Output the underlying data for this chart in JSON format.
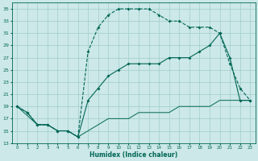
{
  "xlabel": "Humidex (Indice chaleur)",
  "xlim": [
    -0.5,
    23.5
  ],
  "ylim": [
    13,
    36
  ],
  "yticks": [
    13,
    15,
    17,
    19,
    21,
    23,
    25,
    27,
    29,
    31,
    33,
    35
  ],
  "xticks": [
    0,
    1,
    2,
    3,
    4,
    5,
    6,
    7,
    8,
    9,
    10,
    11,
    12,
    13,
    14,
    15,
    16,
    17,
    18,
    19,
    20,
    21,
    22,
    23
  ],
  "background_color": "#cce8e8",
  "grid_color": "#a0cccc",
  "line_color": "#006655",
  "curve_upper_x": [
    0,
    1,
    2,
    3,
    4,
    5,
    6,
    7,
    8,
    9,
    10,
    11,
    12,
    13,
    14,
    15,
    16,
    17,
    18,
    19,
    20,
    21,
    22,
    23
  ],
  "curve_upper_y": [
    19,
    18,
    16,
    16,
    15,
    15,
    14,
    28,
    32,
    34,
    35,
    35,
    35,
    35,
    34,
    33,
    33,
    32,
    32,
    32,
    31,
    26,
    22,
    20
  ],
  "curve_mid_x": [
    0,
    1,
    2,
    3,
    4,
    5,
    6,
    7,
    8,
    9,
    10,
    11,
    12,
    13,
    14,
    15,
    16,
    17,
    18,
    19,
    20,
    21,
    22,
    23
  ],
  "curve_mid_y": [
    19,
    18,
    16,
    16,
    15,
    15,
    14,
    20,
    22,
    24,
    25,
    26,
    26,
    26,
    26,
    27,
    27,
    27,
    28,
    29,
    31,
    27,
    20,
    20
  ],
  "curve_low_x": [
    0,
    2,
    3,
    4,
    5,
    6,
    7,
    8,
    9,
    10,
    11,
    12,
    13,
    14,
    15,
    16,
    17,
    18,
    19,
    20,
    21,
    22,
    23
  ],
  "curve_low_y": [
    19,
    16,
    16,
    15,
    15,
    14,
    15,
    16,
    17,
    17,
    17,
    18,
    18,
    18,
    18,
    19,
    19,
    19,
    19,
    20,
    20,
    20,
    20
  ]
}
